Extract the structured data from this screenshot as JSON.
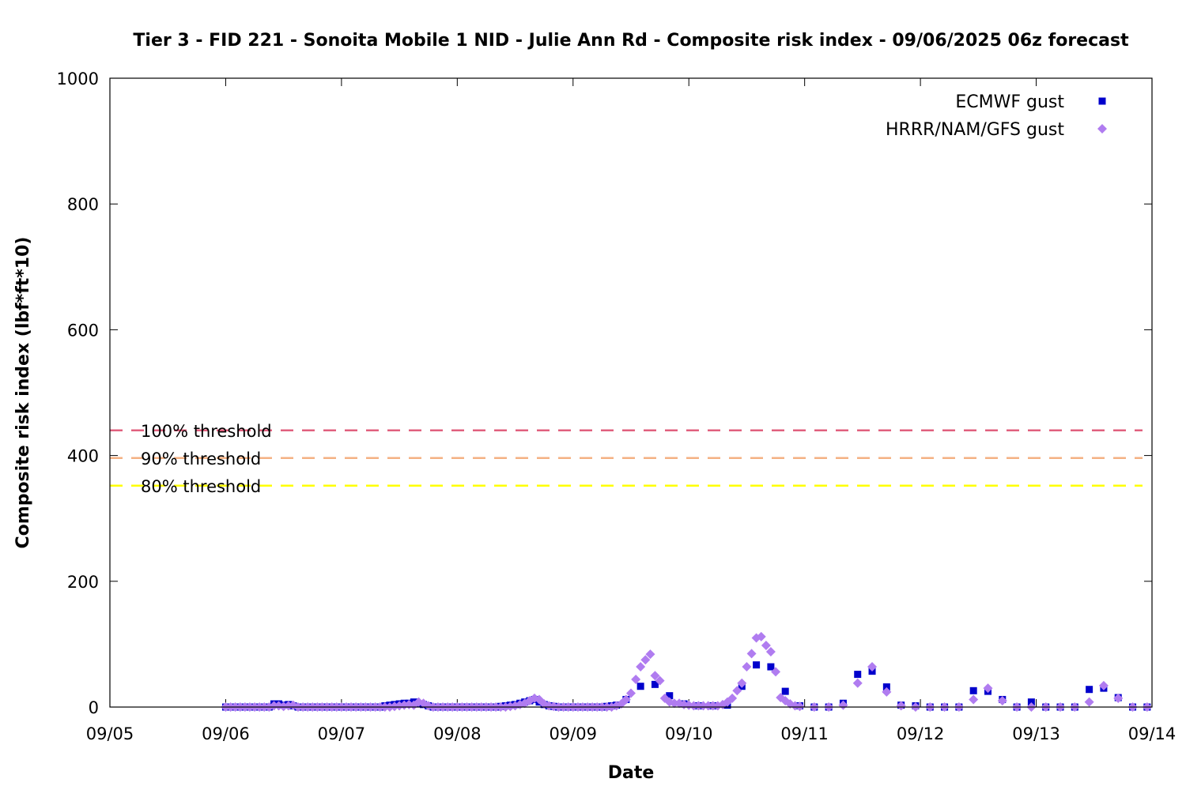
{
  "chart_data": {
    "type": "scatter",
    "title": "Tier 3 - FID 221 - Sonoita Mobile 1 NID - Julie Ann Rd - Composite risk index - 09/06/2025 06z forecast",
    "xlabel": "Date",
    "ylabel": "Composite risk index (lbf*ft*10)",
    "x_unit": "days since 09/05 00z",
    "xlim": [
      0,
      9
    ],
    "ylim": [
      0,
      1000
    ],
    "x_ticks": [
      "09/05",
      "09/06",
      "09/07",
      "09/08",
      "09/09",
      "09/10",
      "09/11",
      "09/12",
      "09/13",
      "09/14"
    ],
    "y_ticks": [
      0,
      200,
      400,
      600,
      800,
      1000
    ],
    "legend_position": "top-right",
    "thresholds": [
      {
        "name": "100% threshold",
        "value": 440,
        "color": "#e0607e"
      },
      {
        "name": "90% threshold",
        "value": 396,
        "color": "#f4b183"
      },
      {
        "name": "80% threshold",
        "value": 352,
        "color": "#ffff00"
      }
    ],
    "series": [
      {
        "name": "ECMWF gust",
        "marker": "square",
        "color": "#0000cc",
        "points": [
          [
            1.0,
            0
          ],
          [
            1.042,
            0
          ],
          [
            1.083,
            0
          ],
          [
            1.125,
            0
          ],
          [
            1.167,
            0
          ],
          [
            1.208,
            0
          ],
          [
            1.25,
            0
          ],
          [
            1.292,
            0
          ],
          [
            1.333,
            0
          ],
          [
            1.375,
            0
          ],
          [
            1.417,
            5
          ],
          [
            1.458,
            5
          ],
          [
            1.5,
            3
          ],
          [
            1.542,
            4
          ],
          [
            1.583,
            2
          ],
          [
            1.625,
            0
          ],
          [
            1.667,
            0
          ],
          [
            1.708,
            0
          ],
          [
            1.75,
            0
          ],
          [
            1.792,
            0
          ],
          [
            1.833,
            0
          ],
          [
            1.875,
            0
          ],
          [
            1.917,
            0
          ],
          [
            1.958,
            0
          ],
          [
            2.0,
            0
          ],
          [
            2.042,
            0
          ],
          [
            2.083,
            0
          ],
          [
            2.125,
            0
          ],
          [
            2.167,
            0
          ],
          [
            2.208,
            0
          ],
          [
            2.25,
            0
          ],
          [
            2.292,
            0
          ],
          [
            2.333,
            0
          ],
          [
            2.375,
            2
          ],
          [
            2.417,
            3
          ],
          [
            2.458,
            4
          ],
          [
            2.5,
            5
          ],
          [
            2.542,
            6
          ],
          [
            2.583,
            6
          ],
          [
            2.625,
            8
          ],
          [
            2.667,
            5
          ],
          [
            2.708,
            4
          ],
          [
            2.75,
            2
          ],
          [
            2.792,
            0
          ],
          [
            2.833,
            0
          ],
          [
            2.875,
            0
          ],
          [
            2.917,
            0
          ],
          [
            2.958,
            0
          ],
          [
            3.0,
            0
          ],
          [
            3.042,
            0
          ],
          [
            3.083,
            0
          ],
          [
            3.125,
            0
          ],
          [
            3.167,
            0
          ],
          [
            3.208,
            0
          ],
          [
            3.25,
            0
          ],
          [
            3.292,
            0
          ],
          [
            3.333,
            0
          ],
          [
            3.375,
            1
          ],
          [
            3.417,
            2
          ],
          [
            3.458,
            3
          ],
          [
            3.5,
            4
          ],
          [
            3.542,
            6
          ],
          [
            3.583,
            8
          ],
          [
            3.625,
            10
          ],
          [
            3.667,
            12
          ],
          [
            3.708,
            8
          ],
          [
            3.75,
            4
          ],
          [
            3.792,
            2
          ],
          [
            3.833,
            1
          ],
          [
            3.875,
            0
          ],
          [
            3.917,
            0
          ],
          [
            3.958,
            0
          ],
          [
            4.0,
            0
          ],
          [
            4.042,
            0
          ],
          [
            4.083,
            0
          ],
          [
            4.125,
            0
          ],
          [
            4.167,
            0
          ],
          [
            4.208,
            0
          ],
          [
            4.25,
            0
          ],
          [
            4.292,
            1
          ],
          [
            4.333,
            2
          ],
          [
            4.375,
            3
          ],
          [
            4.458,
            12
          ],
          [
            4.583,
            33
          ],
          [
            4.708,
            36
          ],
          [
            4.833,
            18
          ],
          [
            4.958,
            5
          ],
          [
            5.083,
            2
          ],
          [
            5.208,
            2
          ],
          [
            5.333,
            3
          ],
          [
            5.458,
            33
          ],
          [
            5.583,
            67
          ],
          [
            5.708,
            64
          ],
          [
            5.833,
            25
          ],
          [
            5.958,
            2
          ],
          [
            6.083,
            0
          ],
          [
            6.208,
            0
          ],
          [
            6.333,
            6
          ],
          [
            6.458,
            52
          ],
          [
            6.583,
            57
          ],
          [
            6.708,
            32
          ],
          [
            6.833,
            3
          ],
          [
            6.958,
            2
          ],
          [
            7.083,
            0
          ],
          [
            7.208,
            0
          ],
          [
            7.333,
            0
          ],
          [
            7.458,
            26
          ],
          [
            7.583,
            25
          ],
          [
            7.708,
            12
          ],
          [
            7.833,
            0
          ],
          [
            7.958,
            8
          ],
          [
            8.083,
            0
          ],
          [
            8.208,
            0
          ],
          [
            8.333,
            0
          ],
          [
            8.458,
            28
          ],
          [
            8.583,
            30
          ],
          [
            8.708,
            15
          ],
          [
            8.833,
            0
          ],
          [
            8.958,
            0
          ]
        ]
      },
      {
        "name": "HRRR/NAM/GFS gust",
        "marker": "diamond",
        "color": "#b07cf0",
        "points": [
          [
            1.0,
            0
          ],
          [
            1.042,
            0
          ],
          [
            1.083,
            0
          ],
          [
            1.125,
            0
          ],
          [
            1.167,
            0
          ],
          [
            1.208,
            0
          ],
          [
            1.25,
            0
          ],
          [
            1.292,
            0
          ],
          [
            1.333,
            0
          ],
          [
            1.375,
            0
          ],
          [
            1.417,
            2
          ],
          [
            1.458,
            2
          ],
          [
            1.5,
            1
          ],
          [
            1.542,
            2
          ],
          [
            1.583,
            3
          ],
          [
            1.625,
            0
          ],
          [
            1.667,
            0
          ],
          [
            1.708,
            0
          ],
          [
            1.75,
            0
          ],
          [
            1.792,
            0
          ],
          [
            1.833,
            0
          ],
          [
            1.875,
            0
          ],
          [
            1.917,
            0
          ],
          [
            1.958,
            0
          ],
          [
            2.0,
            0
          ],
          [
            2.042,
            0
          ],
          [
            2.083,
            0
          ],
          [
            2.125,
            0
          ],
          [
            2.167,
            0
          ],
          [
            2.208,
            0
          ],
          [
            2.25,
            0
          ],
          [
            2.292,
            0
          ],
          [
            2.333,
            0
          ],
          [
            2.375,
            0
          ],
          [
            2.417,
            0
          ],
          [
            2.458,
            1
          ],
          [
            2.5,
            2
          ],
          [
            2.542,
            3
          ],
          [
            2.583,
            4
          ],
          [
            2.625,
            3
          ],
          [
            2.667,
            8
          ],
          [
            2.708,
            6
          ],
          [
            2.75,
            2
          ],
          [
            2.792,
            0
          ],
          [
            2.833,
            0
          ],
          [
            2.875,
            0
          ],
          [
            2.917,
            0
          ],
          [
            2.958,
            0
          ],
          [
            3.0,
            0
          ],
          [
            3.042,
            0
          ],
          [
            3.083,
            0
          ],
          [
            3.125,
            0
          ],
          [
            3.167,
            0
          ],
          [
            3.208,
            0
          ],
          [
            3.25,
            0
          ],
          [
            3.292,
            0
          ],
          [
            3.333,
            0
          ],
          [
            3.375,
            0
          ],
          [
            3.417,
            0
          ],
          [
            3.458,
            1
          ],
          [
            3.5,
            2
          ],
          [
            3.542,
            4
          ],
          [
            3.583,
            6
          ],
          [
            3.625,
            10
          ],
          [
            3.667,
            14
          ],
          [
            3.708,
            12
          ],
          [
            3.75,
            5
          ],
          [
            3.792,
            2
          ],
          [
            3.833,
            1
          ],
          [
            3.875,
            0
          ],
          [
            3.917,
            0
          ],
          [
            3.958,
            0
          ],
          [
            4.0,
            0
          ],
          [
            4.042,
            0
          ],
          [
            4.083,
            0
          ],
          [
            4.125,
            0
          ],
          [
            4.167,
            0
          ],
          [
            4.208,
            0
          ],
          [
            4.25,
            0
          ],
          [
            4.292,
            0
          ],
          [
            4.333,
            0
          ],
          [
            4.375,
            2
          ],
          [
            4.417,
            5
          ],
          [
            4.458,
            12
          ],
          [
            4.5,
            22
          ],
          [
            4.542,
            44
          ],
          [
            4.583,
            64
          ],
          [
            4.625,
            75
          ],
          [
            4.667,
            84
          ],
          [
            4.708,
            50
          ],
          [
            4.75,
            42
          ],
          [
            4.792,
            14
          ],
          [
            4.833,
            8
          ],
          [
            4.875,
            6
          ],
          [
            4.917,
            6
          ],
          [
            4.958,
            4
          ],
          [
            5.0,
            3
          ],
          [
            5.042,
            2
          ],
          [
            5.083,
            2
          ],
          [
            5.125,
            2
          ],
          [
            5.167,
            2
          ],
          [
            5.208,
            2
          ],
          [
            5.25,
            2
          ],
          [
            5.292,
            4
          ],
          [
            5.333,
            8
          ],
          [
            5.375,
            14
          ],
          [
            5.417,
            26
          ],
          [
            5.458,
            38
          ],
          [
            5.5,
            64
          ],
          [
            5.542,
            85
          ],
          [
            5.583,
            110
          ],
          [
            5.625,
            112
          ],
          [
            5.667,
            98
          ],
          [
            5.708,
            88
          ],
          [
            5.75,
            56
          ],
          [
            5.792,
            15
          ],
          [
            5.833,
            10
          ],
          [
            5.875,
            5
          ],
          [
            5.917,
            2
          ],
          [
            5.958,
            1
          ],
          [
            6.083,
            0
          ],
          [
            6.208,
            0
          ],
          [
            6.333,
            3
          ],
          [
            6.458,
            38
          ],
          [
            6.583,
            64
          ],
          [
            6.708,
            24
          ],
          [
            6.833,
            2
          ],
          [
            6.958,
            0
          ],
          [
            7.083,
            0
          ],
          [
            7.208,
            0
          ],
          [
            7.333,
            0
          ],
          [
            7.458,
            12
          ],
          [
            7.583,
            30
          ],
          [
            7.708,
            10
          ],
          [
            7.833,
            0
          ],
          [
            7.958,
            0
          ],
          [
            8.083,
            0
          ],
          [
            8.208,
            0
          ],
          [
            8.333,
            0
          ],
          [
            8.458,
            8
          ],
          [
            8.583,
            34
          ],
          [
            8.708,
            14
          ],
          [
            8.833,
            0
          ],
          [
            8.958,
            0
          ]
        ]
      }
    ]
  }
}
